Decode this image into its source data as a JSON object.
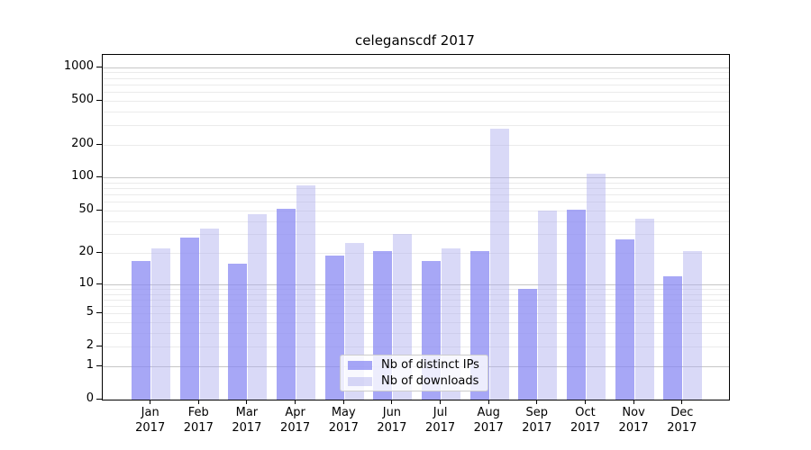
{
  "title": "celeganscdf 2017",
  "chart_data": {
    "type": "bar",
    "title": "celeganscdf 2017",
    "categories": [
      "Jan",
      "Feb",
      "Mar",
      "Apr",
      "May",
      "Jun",
      "Jul",
      "Aug",
      "Sep",
      "Oct",
      "Nov",
      "Dec"
    ],
    "year": "2017",
    "series": [
      {
        "name": "Nb of distinct IPs",
        "color": "rgba(135,135,243,0.73)",
        "values": [
          17,
          28,
          16,
          52,
          19,
          21,
          17,
          21,
          9,
          51,
          27,
          12
        ]
      },
      {
        "name": "Nb of downloads",
        "color": "rgba(170,170,238,0.45)",
        "values": [
          22,
          34,
          46,
          85,
          25,
          30,
          22,
          280,
          50,
          108,
          42,
          21
        ]
      }
    ],
    "yscale": "log1p",
    "ylim": [
      0,
      1315
    ],
    "y_ticks": [
      0,
      1,
      2,
      5,
      10,
      20,
      50,
      100,
      200,
      500,
      1000
    ],
    "y_major_gridlines": [
      1,
      10,
      100,
      1000
    ],
    "y_minor_gridlines": [
      2,
      3,
      4,
      5,
      6,
      7,
      8,
      9,
      20,
      30,
      40,
      50,
      60,
      70,
      80,
      90,
      200,
      300,
      400,
      500,
      600,
      700,
      800,
      900
    ],
    "xlabel": "",
    "ylabel": "",
    "grid": true,
    "legend_position": "bottom-center"
  },
  "legend": {
    "items": [
      {
        "label": "Nb of distinct IPs"
      },
      {
        "label": "Nb of downloads"
      }
    ]
  },
  "colors": {
    "bar_distinct_ips": "rgba(135,135,243,0.73)",
    "bar_downloads": "rgba(170,170,238,0.45)",
    "grid_major": "#c6c6c6",
    "grid_minor": "#ebebeb",
    "axis": "#000000"
  }
}
